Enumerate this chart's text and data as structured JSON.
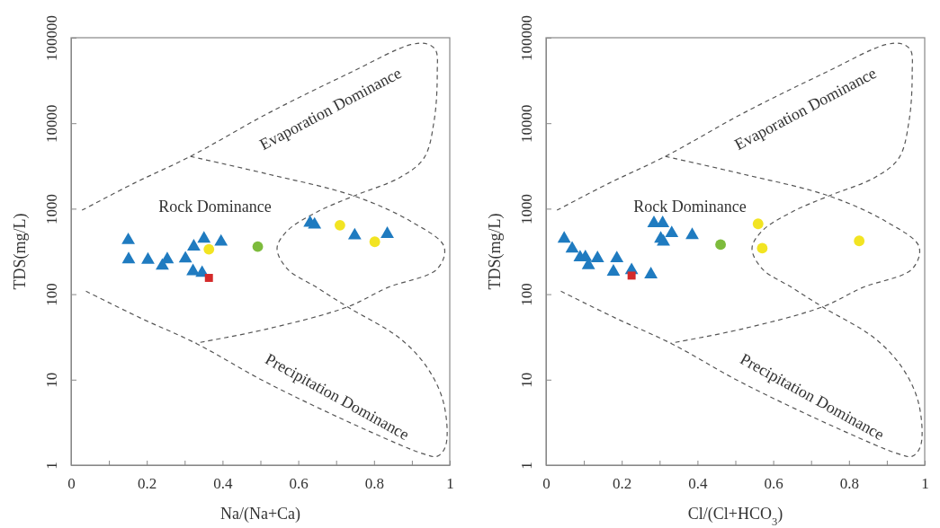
{
  "chart_data": [
    {
      "type": "scatter",
      "xlabel": "Na/(Na+Ca)",
      "ylabel": "TDS(mg/L)",
      "xlim": [
        0,
        1
      ],
      "ylim": [
        1,
        100000
      ],
      "log": "y",
      "line_style": "dashed",
      "xticks": [
        0,
        {
          "value": 0.1,
          "label": null
        },
        0.2,
        {
          "value": 0.3,
          "label": null
        },
        0.4,
        {
          "value": 0.5,
          "label": null
        },
        0.6,
        {
          "value": 0.7,
          "label": null
        },
        0.8,
        {
          "value": 0.9,
          "label": null
        },
        1
      ],
      "yticks": [
        1,
        10,
        100,
        1000,
        10000,
        100000
      ],
      "annotations": [
        "Evaporation Dominance",
        "Rock Dominance",
        "Precipitation Dominance"
      ],
      "series": [
        {
          "type": "line",
          "color": "#555555",
          "x": [
            0.029,
            0.166,
            0.315,
            0.518,
            0.738,
            0.897,
            0.941,
            0.963,
            0.967,
            0.959,
            0.932,
            0.87,
            0.747,
            0.65,
            0.571,
            0.544,
            0.571,
            0.65,
            0.73,
            0.87,
            0.945,
            0.985,
            0.989,
            0.967,
            0.932,
            0.782,
            0.518,
            0.329,
            0.183,
            0.038
          ],
          "values": [
            960,
            1980,
            4090,
            12900,
            39200,
            83000,
            84300,
            71100,
            39200,
            10900,
            3920,
            2340,
            1410,
            918,
            551,
            344,
            198,
            119,
            71,
            30,
            12.9,
            5.06,
            1.67,
            1.27,
            1.35,
            2.55,
            9.18,
            26.7,
            52.7,
            109
          ]
        },
        {
          "type": "line",
          "color": "#555555",
          "x": [
            0.315,
            0.518,
            0.747,
            0.897,
            0.985,
            0.967,
            0.835,
            0.73,
            0.518,
            0.329
          ],
          "values": [
            4090,
            2550,
            1410,
            711,
            359,
            198,
            119,
            71,
            39.2,
            26.7
          ]
        },
        {
          "marker": "triangle",
          "color": "#1f7bc0",
          "x": [
            0.151,
            0.152,
            0.203,
            0.241,
            0.254,
            0.302,
            0.324,
            0.322,
            0.346,
            0.351,
            0.396,
            0.631,
            0.643,
            0.749,
            0.835
          ],
          "values": [
            427,
            255,
            252,
            215,
            255,
            260,
            360,
            185,
            177,
            445,
            410,
            680,
            650,
            485,
            505
          ]
        },
        {
          "marker": "circle",
          "color": "#f2e422",
          "x": [
            0.364,
            0.71,
            0.802
          ],
          "values": [
            335,
            640,
            410
          ]
        },
        {
          "marker": "circle",
          "color": "#7dbb3c",
          "x": [
            0.493
          ],
          "values": [
            360
          ]
        },
        {
          "marker": "square",
          "color": "#d42a2a",
          "x": [
            0.364
          ],
          "values": [
            155
          ]
        }
      ]
    },
    {
      "type": "scatter",
      "xlabel": "Cl/(Cl+HCO$_{3}$)",
      "ylabel": "TDS(mg/L)",
      "xlim": [
        0,
        1
      ],
      "ylim": [
        1,
        100000
      ],
      "log": "y",
      "line_style": "dashed",
      "xticks": [
        0,
        {
          "value": 0.1,
          "label": null
        },
        0.2,
        {
          "value": 0.3,
          "label": null
        },
        0.4,
        {
          "value": 0.5,
          "label": null
        },
        0.6,
        {
          "value": 0.7,
          "label": null
        },
        0.8,
        {
          "value": 0.9,
          "label": null
        },
        1
      ],
      "yticks": [
        1,
        10,
        100,
        1000,
        10000,
        100000
      ],
      "annotations": [
        "Evaporation Dominance",
        "Rock Dominance",
        "Precipitation Dominance"
      ],
      "series": [
        {
          "type": "line",
          "color": "#555555",
          "x": [
            0.029,
            0.166,
            0.315,
            0.518,
            0.738,
            0.897,
            0.941,
            0.963,
            0.967,
            0.959,
            0.932,
            0.87,
            0.747,
            0.65,
            0.571,
            0.544,
            0.571,
            0.65,
            0.73,
            0.87,
            0.945,
            0.985,
            0.989,
            0.967,
            0.932,
            0.782,
            0.518,
            0.329,
            0.183,
            0.038
          ],
          "values": [
            960,
            1980,
            4090,
            12900,
            39200,
            83000,
            84300,
            71100,
            39200,
            10900,
            3920,
            2340,
            1410,
            918,
            551,
            344,
            198,
            119,
            71,
            30,
            12.9,
            5.06,
            1.67,
            1.27,
            1.35,
            2.55,
            9.18,
            26.7,
            52.7,
            109
          ]
        },
        {
          "type": "line",
          "color": "#555555",
          "x": [
            0.315,
            0.518,
            0.747,
            0.897,
            0.985,
            0.967,
            0.835,
            0.73,
            0.518,
            0.329
          ],
          "values": [
            4090,
            2550,
            1410,
            711,
            359,
            198,
            119,
            71,
            39.2,
            26.7
          ]
        },
        {
          "marker": "triangle",
          "color": "#1f7bc0",
          "x": [
            0.048,
            0.069,
            0.09,
            0.104,
            0.112,
            0.136,
            0.187,
            0.178,
            0.226,
            0.277,
            0.285,
            0.308,
            0.303,
            0.31,
            0.332,
            0.386
          ],
          "values": [
            445,
            340,
            268,
            270,
            218,
            263,
            262,
            183,
            190,
            170,
            675,
            675,
            445,
            410,
            515,
            490
          ]
        },
        {
          "marker": "circle",
          "color": "#f2e422",
          "x": [
            0.56,
            0.571,
            0.827
          ],
          "values": [
            665,
            345,
            420
          ]
        },
        {
          "marker": "circle",
          "color": "#7dbb3c",
          "x": [
            0.461
          ],
          "values": [
            380
          ]
        },
        {
          "marker": "square",
          "color": "#d42a2a",
          "x": [
            0.226
          ],
          "values": [
            165
          ]
        }
      ]
    }
  ]
}
